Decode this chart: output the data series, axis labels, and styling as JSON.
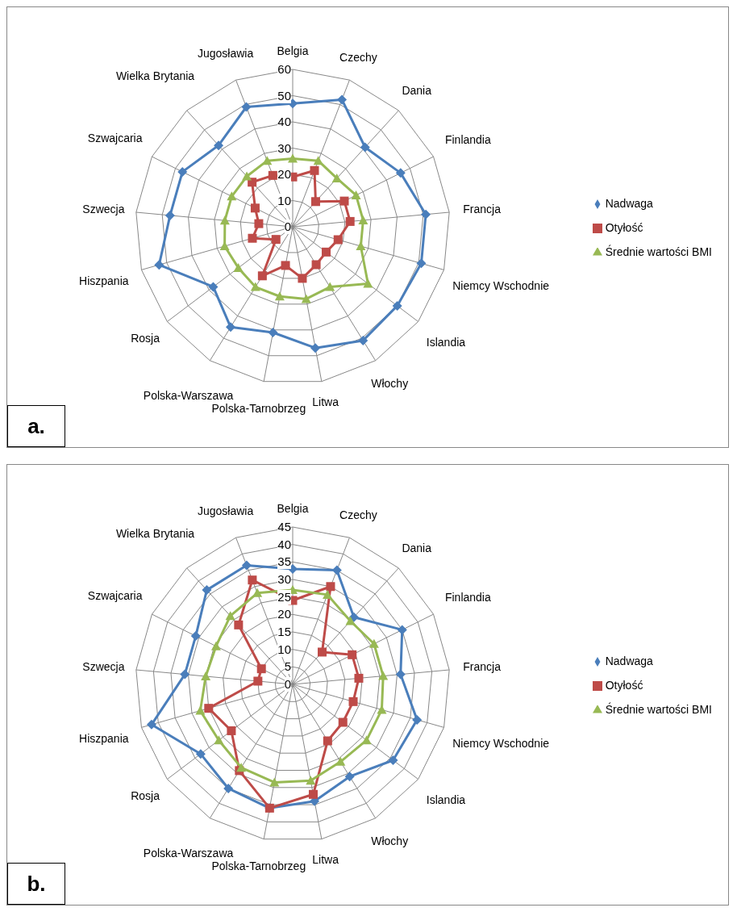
{
  "chart_data": [
    {
      "type": "radar",
      "categories": [
        "Belgia",
        "Czechy",
        "Dania",
        "Finlandia",
        "Francja",
        "Niemcy Wschodnie",
        "Islandia",
        "Włochy",
        "Litwa",
        "Polska-Tarnobrzeg",
        "Polska-Warszawa",
        "Rosja",
        "Hiszpania",
        "Szwecja",
        "Szwajcaria",
        "Wielka Brytania",
        "Jugosławia"
      ],
      "series": [
        {
          "name": "Nadwaga",
          "color": "#4a7ebb",
          "marker": "diamond",
          "values": [
            47,
            52,
            41,
            46,
            51,
            51,
            50,
            51,
            47,
            41,
            45,
            38,
            53,
            47,
            47,
            42,
            49
          ]
        },
        {
          "name": "Otyłość",
          "color": "#be4b48",
          "marker": "square",
          "values": [
            19,
            23,
            13,
            22,
            22,
            18,
            16,
            17,
            20,
            15,
            22,
            8,
            16,
            13,
            16,
            23,
            21
          ]
        },
        {
          "name": "Średnie wartości BMI",
          "color": "#98b954",
          "marker": "triangle",
          "values": [
            26,
            27,
            25,
            27,
            27,
            27,
            36,
            27,
            28,
            27,
            27,
            26,
            27,
            26,
            26,
            26,
            27
          ]
        }
      ],
      "ylim": [
        0,
        60
      ],
      "yticks": [
        0,
        10,
        20,
        30,
        40,
        50,
        60
      ],
      "grid": true,
      "legend": "right",
      "annotations": [
        "a."
      ]
    },
    {
      "type": "radar",
      "categories": [
        "Belgia",
        "Czechy",
        "Dania",
        "Finlandia",
        "Francja",
        "Niemcy Wschodnie",
        "Islandia",
        "Włochy",
        "Litwa",
        "Polska-Tarnobrzeg",
        "Polska-Warszawa",
        "Rosja",
        "Hiszpania",
        "Szwecja",
        "Szwajcaria",
        "Wielka Brytania",
        "Jugosławia"
      ],
      "series": [
        {
          "name": "Nadwaga",
          "color": "#4a7ebb",
          "marker": "diamond",
          "values": [
            33,
            35,
            26,
            35,
            31,
            37,
            36,
            31,
            34,
            36,
            35,
            33,
            42,
            31,
            31,
            36.5,
            36.5
          ]
        },
        {
          "name": "Otyłość",
          "color": "#be4b48",
          "marker": "square",
          "values": [
            24,
            30,
            12.5,
            19,
            19,
            18,
            18,
            19,
            32,
            36,
            29,
            22,
            25,
            10,
            10,
            23,
            32
          ]
        },
        {
          "name": "Średnie wartości BMI",
          "color": "#98b954",
          "marker": "triangle",
          "values": [
            27,
            27.5,
            24.5,
            26,
            26,
            26.5,
            26.5,
            26,
            28,
            28.5,
            28,
            26.5,
            27.5,
            25,
            24.5,
            26.5,
            28
          ]
        }
      ],
      "ylim": [
        0,
        45
      ],
      "yticks": [
        0,
        5,
        10,
        15,
        20,
        25,
        30,
        35,
        40,
        45
      ],
      "grid": true,
      "legend": "right",
      "annotations": [
        "b."
      ]
    }
  ]
}
